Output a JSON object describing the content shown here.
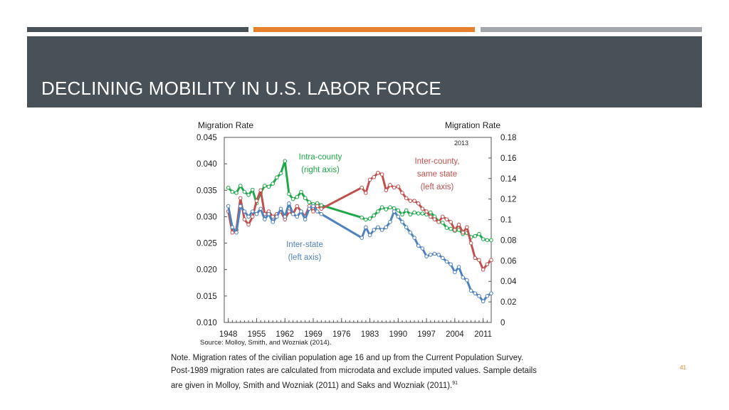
{
  "slide": {
    "title": "DECLINING MOBILITY IN U.S. LABOR FORCE",
    "page_number": "41",
    "colors": {
      "band": "#475157",
      "accent": "#e5812a",
      "bar_light": "#a3a7ab"
    }
  },
  "chart_data": {
    "type": "line",
    "y_left_label": "Migration Rate",
    "y_right_label": "Migration Rate",
    "y_left_lim": [
      0.01,
      0.045
    ],
    "y_right_lim": [
      0,
      0.18
    ],
    "y_left_ticks": [
      "0.045",
      "0.040",
      "0.035",
      "0.030",
      "0.025",
      "0.020",
      "0.015",
      "0.010"
    ],
    "y_right_ticks": [
      "0.18",
      "0.16",
      "0.14",
      "0.12",
      "0.1",
      "0.08",
      "0.06",
      "0.04",
      "0.02",
      "0"
    ],
    "x_lim": [
      1947,
      2013
    ],
    "x_ticks": [
      "1948",
      "1955",
      "1962",
      "1969",
      "1976",
      "1983",
      "1990",
      "1997",
      "2004",
      "2011"
    ],
    "year_label": "2013",
    "annotations": {
      "intra": [
        "Intra-county",
        "(right axis)"
      ],
      "inter_county": [
        "Inter-county,",
        "same state",
        "(left axis)"
      ],
      "inter_state": [
        "Inter-state",
        "(left axis)"
      ]
    },
    "series": [
      {
        "name": "Intra-county",
        "axis": "right",
        "color": "#1fa84a",
        "x": [
          1948,
          1949,
          1950,
          1951,
          1952,
          1953,
          1954,
          1955,
          1956,
          1957,
          1958,
          1959,
          1960,
          1961,
          1962,
          1963,
          1964,
          1965,
          1966,
          1967,
          1968,
          1969,
          1970,
          1971,
          1981,
          1982,
          1983,
          1984,
          1985,
          1986,
          1987,
          1988,
          1989,
          1990,
          1991,
          1992,
          1993,
          1994,
          1995,
          1996,
          1997,
          1998,
          1999,
          2000,
          2001,
          2002,
          2003,
          2004,
          2005,
          2006,
          2007,
          2008,
          2009,
          2010,
          2011,
          2012,
          2013
        ],
        "y": [
          0.131,
          0.127,
          0.126,
          0.133,
          0.127,
          0.124,
          0.129,
          0.116,
          0.126,
          0.133,
          0.132,
          0.135,
          0.141,
          0.145,
          0.157,
          0.125,
          0.12,
          0.122,
          0.127,
          0.121,
          0.117,
          0.115,
          0.116,
          0.114,
          0.102,
          0.1,
          0.101,
          0.104,
          0.108,
          0.112,
          0.11,
          0.112,
          0.111,
          0.109,
          0.105,
          0.109,
          0.105,
          0.107,
          0.106,
          0.106,
          0.105,
          0.107,
          0.103,
          0.098,
          0.097,
          0.092,
          0.091,
          0.089,
          0.09,
          0.086,
          0.087,
          0.083,
          0.084,
          0.086,
          0.081,
          0.08,
          0.08
        ]
      },
      {
        "name": "Inter-county, same state",
        "axis": "left",
        "color": "#c0504d",
        "x": [
          1948,
          1949,
          1950,
          1951,
          1952,
          1953,
          1954,
          1955,
          1956,
          1957,
          1958,
          1959,
          1960,
          1961,
          1962,
          1963,
          1964,
          1965,
          1966,
          1967,
          1968,
          1969,
          1970,
          1971,
          1981,
          1982,
          1983,
          1984,
          1985,
          1986,
          1987,
          1988,
          1989,
          1990,
          1991,
          1992,
          1993,
          1994,
          1995,
          1996,
          1997,
          1998,
          1999,
          2000,
          2001,
          2002,
          2003,
          2004,
          2005,
          2006,
          2007,
          2008,
          2009,
          2010,
          2011,
          2012,
          2013
        ],
        "y": [
          0.031,
          0.027,
          0.0275,
          0.0335,
          0.0295,
          0.0285,
          0.03,
          0.033,
          0.035,
          0.0305,
          0.031,
          0.03,
          0.0305,
          0.031,
          0.0295,
          0.031,
          0.0305,
          0.032,
          0.031,
          0.03,
          0.032,
          0.031,
          0.032,
          0.0315,
          0.0355,
          0.0345,
          0.037,
          0.0375,
          0.0383,
          0.038,
          0.035,
          0.036,
          0.0355,
          0.0357,
          0.0345,
          0.0335,
          0.033,
          0.033,
          0.0325,
          0.0315,
          0.031,
          0.03,
          0.0295,
          0.029,
          0.03,
          0.0295,
          0.029,
          0.0275,
          0.0285,
          0.027,
          0.028,
          0.025,
          0.0222,
          0.0218,
          0.02,
          0.021,
          0.0218
        ]
      },
      {
        "name": "Inter-state",
        "axis": "left",
        "color": "#4f81bd",
        "x": [
          1948,
          1949,
          1950,
          1951,
          1952,
          1953,
          1954,
          1955,
          1956,
          1957,
          1958,
          1959,
          1960,
          1961,
          1962,
          1963,
          1964,
          1965,
          1966,
          1967,
          1968,
          1969,
          1970,
          1971,
          1981,
          1982,
          1983,
          1984,
          1985,
          1986,
          1987,
          1988,
          1989,
          1990,
          1991,
          1992,
          1993,
          1994,
          1995,
          1996,
          1997,
          1998,
          1999,
          2000,
          2001,
          2002,
          2003,
          2004,
          2005,
          2006,
          2007,
          2008,
          2009,
          2010,
          2011,
          2012,
          2013
        ],
        "y": [
          0.032,
          0.028,
          0.027,
          0.032,
          0.031,
          0.03,
          0.031,
          0.0305,
          0.0315,
          0.0295,
          0.0305,
          0.029,
          0.03,
          0.0315,
          0.03,
          0.0325,
          0.0305,
          0.03,
          0.031,
          0.0295,
          0.0315,
          0.032,
          0.031,
          0.0305,
          0.026,
          0.028,
          0.0265,
          0.0275,
          0.028,
          0.0275,
          0.028,
          0.029,
          0.031,
          0.03,
          0.029,
          0.028,
          0.027,
          0.026,
          0.0245,
          0.024,
          0.0225,
          0.0228,
          0.023,
          0.0228,
          0.0222,
          0.0215,
          0.021,
          0.0195,
          0.0205,
          0.0185,
          0.018,
          0.016,
          0.0155,
          0.015,
          0.014,
          0.015,
          0.0155
        ]
      }
    ]
  },
  "caption": {
    "source": "Source: Molloy, Smith, and Wozniak (2014).",
    "note_lines": [
      "Note. Migration rates of the civilian population age 16 and up from the Current Population Survey.",
      "Post-1989 migration rates are calculated from microdata and exclude imputed values.  Sample details",
      "are given in Molloy, Smith and Wozniak (2011) and Saks and Wozniak (2011)."
    ],
    "note_footnote": "91"
  }
}
